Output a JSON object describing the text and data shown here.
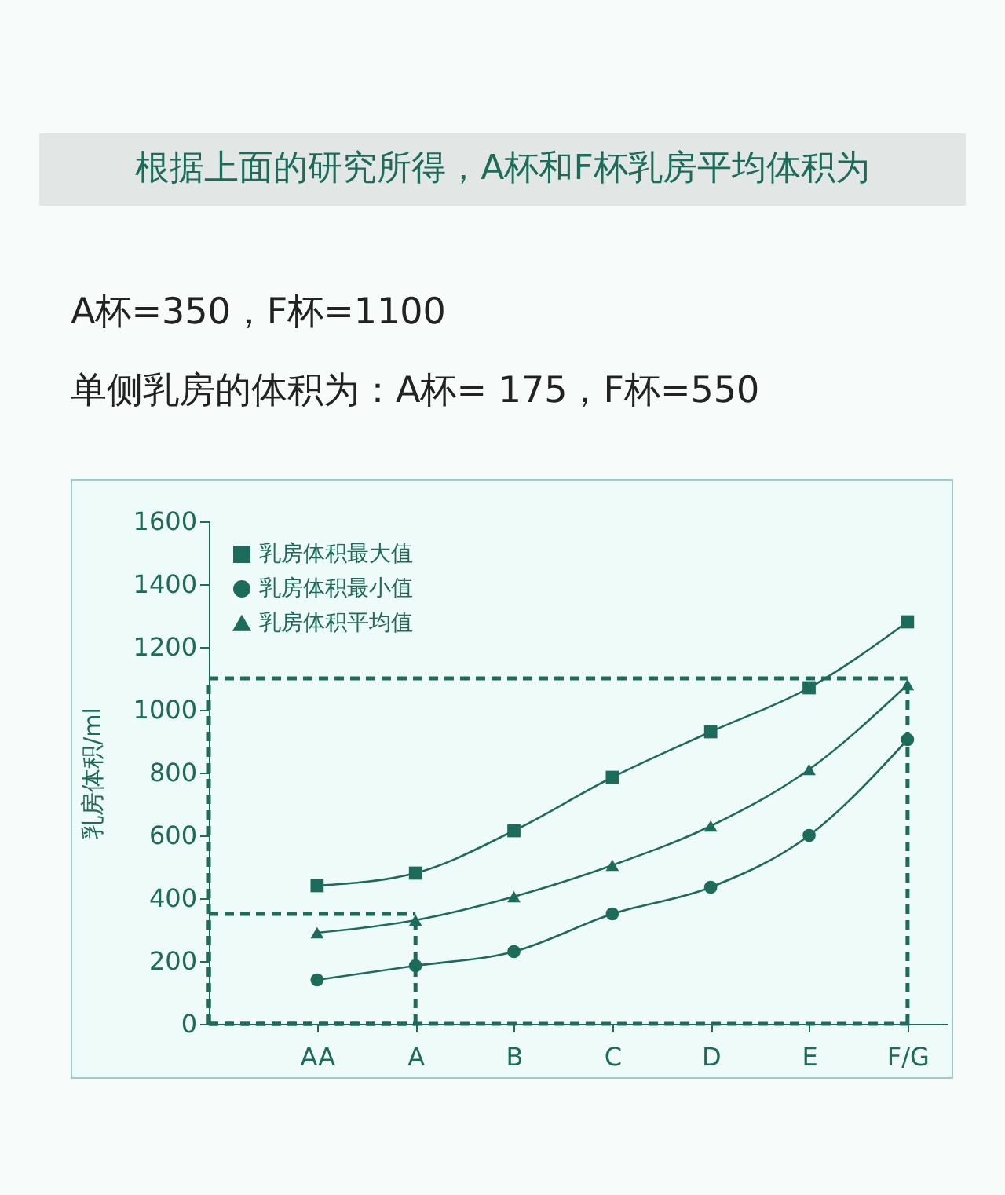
{
  "chart_data": {
    "type": "line",
    "title": "根据上面的研究所得，A杯和F杯乳房平均体积为",
    "annotations": [
      "A杯=350，F杯=1100",
      "单侧乳房的体积为：A杯= 175，F杯=550"
    ],
    "ylabel": "乳房体积/ml",
    "categories": [
      "AA",
      "A",
      "B",
      "C",
      "D",
      "E",
      "F/G"
    ],
    "series": [
      {
        "name": "乳房体积最大值",
        "color": "#1d6b5a",
        "marker": "square",
        "values": [
          440,
          480,
          615,
          785,
          930,
          1070,
          1280
        ]
      },
      {
        "name": "乳房体积最小值",
        "color": "#1d6b5a",
        "marker": "circle",
        "values": [
          140,
          185,
          230,
          350,
          435,
          600,
          905
        ]
      },
      {
        "name": "乳房体积平均值",
        "color": "#1d6b5a",
        "marker": "triangle",
        "values": [
          290,
          330,
          405,
          505,
          630,
          810,
          1080
        ]
      }
    ],
    "ylim": [
      0,
      1600
    ],
    "yticks": [
      0,
      200,
      400,
      600,
      800,
      1000,
      1200,
      1400,
      1600
    ],
    "ref_lines": [
      {
        "axis": "y",
        "value": 350,
        "color": "#1d6b5a",
        "line_style": "dashed"
      },
      {
        "axis": "x",
        "value": "A",
        "color": "#1d6b5a",
        "line_style": "dashed"
      },
      {
        "axis": "y",
        "value": 1100,
        "color": "#1d6b5a",
        "line_style": "dashed"
      },
      {
        "axis": "x",
        "value": "F/G",
        "color": "#1d6b5a",
        "line_style": "dashed"
      }
    ],
    "legend": "top left",
    "grid": false,
    "line_style": "solid"
  }
}
